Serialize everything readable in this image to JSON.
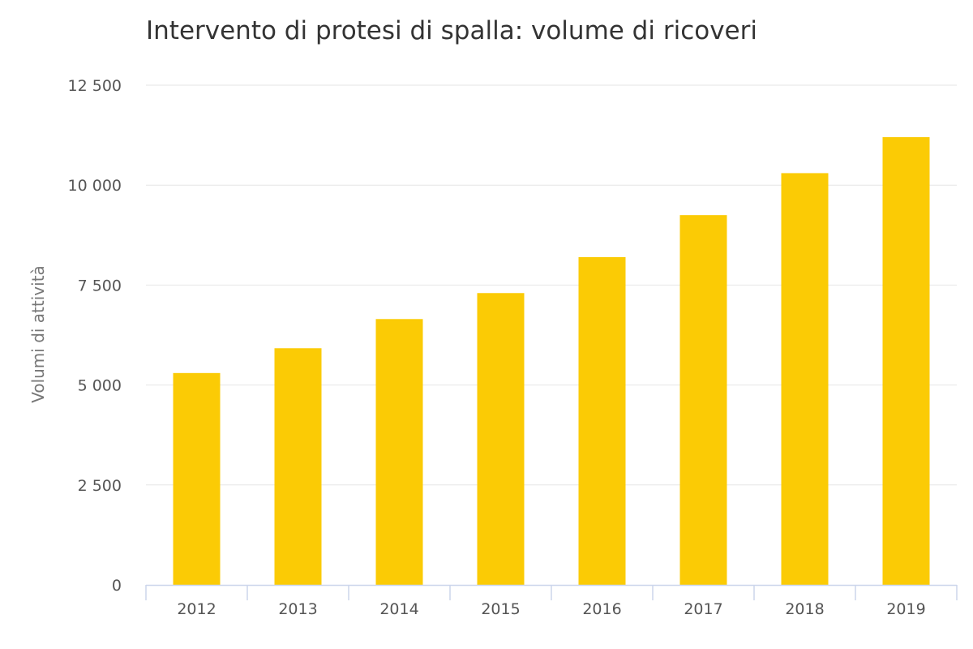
{
  "chart_data": {
    "type": "bar",
    "title": "Intervento di protesi di spalla: volume di ricoveri",
    "xlabel": "",
    "ylabel": "Volumi di attività",
    "categories": [
      "2012",
      "2013",
      "2014",
      "2015",
      "2016",
      "2017",
      "2018",
      "2019"
    ],
    "values": [
      5300,
      5920,
      6650,
      7300,
      8200,
      9250,
      10300,
      11200
    ],
    "ylim": [
      0,
      12500
    ],
    "yticks": [
      0,
      2500,
      5000,
      7500,
      10000,
      12500
    ],
    "ytick_labels": [
      "0",
      "2 500",
      "5 000",
      "7 500",
      "10 000",
      "12 500"
    ],
    "grid": true,
    "legend": "none",
    "colors": {
      "bar": "#FBCB05",
      "grid": "#E6E6E6",
      "axis": "#CCD6EB"
    }
  }
}
